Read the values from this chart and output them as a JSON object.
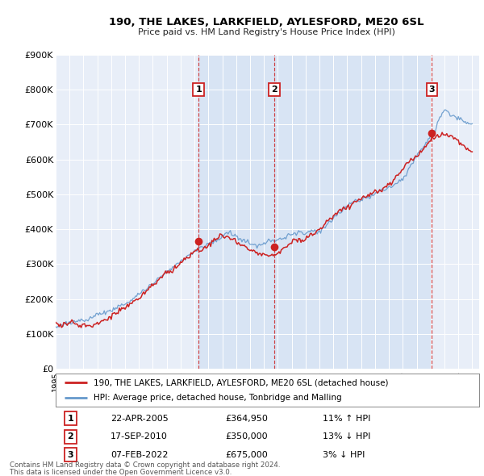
{
  "title": "190, THE LAKES, LARKFIELD, AYLESFORD, ME20 6SL",
  "subtitle": "Price paid vs. HM Land Registry's House Price Index (HPI)",
  "background_color": "#ffffff",
  "plot_bg_color": "#e8eef8",
  "highlight_bg_color": "#d8e4f4",
  "grid_color": "#ffffff",
  "hpi_color": "#6699cc",
  "price_color": "#cc2222",
  "transactions": [
    {
      "num": 1,
      "date": "22-APR-2005",
      "year": 2005.3,
      "price": 364950,
      "pct": "11%",
      "dir": "↑"
    },
    {
      "num": 2,
      "date": "17-SEP-2010",
      "year": 2010.72,
      "price": 350000,
      "pct": "13%",
      "dir": "↓"
    },
    {
      "num": 3,
      "date": "07-FEB-2022",
      "year": 2022.1,
      "price": 675000,
      "pct": "3%",
      "dir": "↓"
    }
  ],
  "legend_entries": [
    "190, THE LAKES, LARKFIELD, AYLESFORD, ME20 6SL (detached house)",
    "HPI: Average price, detached house, Tonbridge and Malling"
  ],
  "footer_lines": [
    "Contains HM Land Registry data © Crown copyright and database right 2024.",
    "This data is licensed under the Open Government Licence v3.0."
  ],
  "ylim": [
    0,
    900000
  ],
  "yticks": [
    0,
    100000,
    200000,
    300000,
    400000,
    500000,
    600000,
    700000,
    800000,
    900000
  ],
  "ytick_labels": [
    "£0",
    "£100K",
    "£200K",
    "£300K",
    "£400K",
    "£500K",
    "£600K",
    "£700K",
    "£800K",
    "£900K"
  ],
  "xlim_start": 1995,
  "xlim_end": 2025.5
}
